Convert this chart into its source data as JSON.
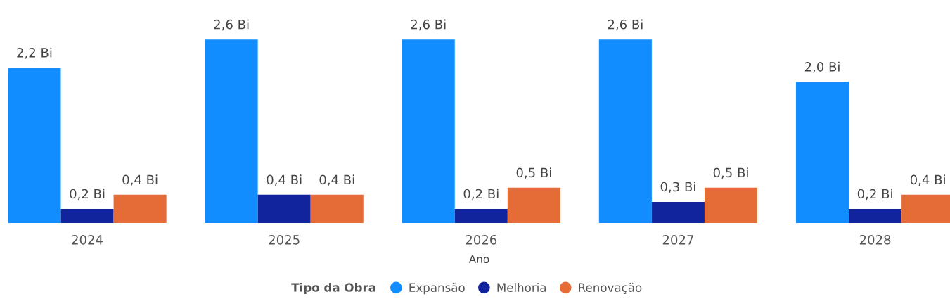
{
  "chart_data": {
    "type": "bar",
    "xlabel": "Ano",
    "legend_title": "Tipo da Obra",
    "legend": "bottom",
    "grid": false,
    "categories": [
      "2024",
      "2025",
      "2026",
      "2027",
      "2028"
    ],
    "series": [
      {
        "name": "Expansão",
        "color": "#118dff",
        "values": [
          2.2,
          2.6,
          2.6,
          2.6,
          2.0
        ],
        "value_labels": [
          "2,2 Bi",
          "2,6 Bi",
          "2,6 Bi",
          "2,6 Bi",
          "2,0 Bi"
        ]
      },
      {
        "name": "Melhoria",
        "color": "#12239e",
        "values": [
          0.2,
          0.4,
          0.2,
          0.3,
          0.2
        ],
        "value_labels": [
          "0,2 Bi",
          "0,4 Bi",
          "0,2 Bi",
          "0,3 Bi",
          "0,2 Bi"
        ]
      },
      {
        "name": "Renovação",
        "color": "#e66c37",
        "values": [
          0.4,
          0.4,
          0.5,
          0.5,
          0.4
        ],
        "value_labels": [
          "0,4 Bi",
          "0,4 Bi",
          "0,5 Bi",
          "0,5 Bi",
          "0,4 Bi"
        ]
      }
    ]
  }
}
